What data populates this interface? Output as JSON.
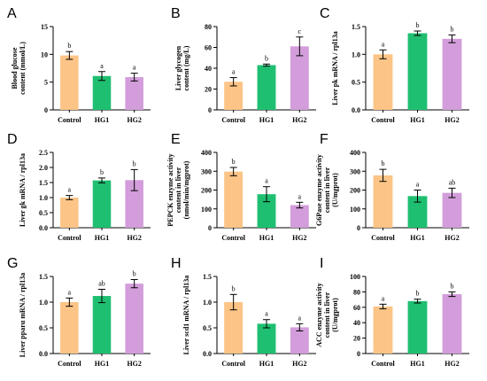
{
  "figure": {
    "colors": {
      "Control": "#FCC486",
      "HG1": "#1FBF71",
      "HG2": "#D39DDB"
    }
  },
  "chart_data": [
    {
      "id": "A",
      "type": "bar",
      "letter": "A",
      "categories": [
        "Control",
        "HG1",
        "HG2"
      ],
      "values": [
        9.8,
        6.1,
        5.9
      ],
      "errors": [
        0.7,
        0.8,
        0.7
      ],
      "sig": [
        "b",
        "a",
        "a"
      ],
      "ylabel_lines": [
        "Blood glucose",
        "content (mmol/L)"
      ],
      "ylim": [
        0,
        15
      ],
      "yticks": [
        "0",
        "5",
        "10",
        "15"
      ]
    },
    {
      "id": "B",
      "type": "bar",
      "letter": "B",
      "categories": [
        "Control",
        "HG1",
        "HG2"
      ],
      "values": [
        27,
        43,
        61
      ],
      "errors": [
        4,
        1,
        9
      ],
      "sig": [
        "a",
        "b",
        "c"
      ],
      "ylabel_lines": [
        "Liver glycogen",
        "content (mg/L)"
      ],
      "ylim": [
        0,
        80
      ],
      "yticks": [
        "0",
        "20",
        "40",
        "60",
        "80"
      ]
    },
    {
      "id": "C",
      "type": "bar",
      "letter": "C",
      "categories": [
        "Control",
        "HG1",
        "HG2"
      ],
      "values": [
        1.0,
        1.38,
        1.28
      ],
      "errors": [
        0.08,
        0.04,
        0.07
      ],
      "sig": [
        "a",
        "b",
        "b"
      ],
      "ylabel_lines": [
        "Liver pk mRNA / rpl13a"
      ],
      "ylim": [
        0,
        1.5
      ],
      "yticks": [
        "0.0",
        "0.5",
        "1.0",
        "1.5"
      ]
    },
    {
      "id": "D",
      "type": "bar",
      "letter": "D",
      "categories": [
        "Control",
        "HG1",
        "HG2"
      ],
      "values": [
        1.0,
        1.57,
        1.58
      ],
      "errors": [
        0.07,
        0.08,
        0.35
      ],
      "sig": [
        "a",
        "b",
        "b"
      ],
      "ylabel_lines": [
        "Liver gk mRNA / rpl13a"
      ],
      "ylim": [
        0,
        2.5
      ],
      "yticks": [
        "0.0",
        "0.5",
        "1.0",
        "1.5",
        "2.0",
        "2.5"
      ]
    },
    {
      "id": "E",
      "type": "bar",
      "letter": "E",
      "categories": [
        "Control",
        "HG1",
        "HG2"
      ],
      "values": [
        298,
        178,
        120
      ],
      "errors": [
        22,
        40,
        15
      ],
      "sig": [
        "b",
        "a",
        "a"
      ],
      "ylabel_lines": [
        "PEPCK enzyme activity",
        "content in liver",
        "(nmol/min/mgprot)"
      ],
      "ylim": [
        0,
        400
      ],
      "yticks": [
        "0",
        "100",
        "200",
        "300",
        "400"
      ]
    },
    {
      "id": "F",
      "type": "bar",
      "letter": "F",
      "categories": [
        "Control",
        "HG1",
        "HG2"
      ],
      "values": [
        278,
        168,
        185
      ],
      "errors": [
        32,
        32,
        25
      ],
      "sig": [
        "b",
        "a",
        "ab"
      ],
      "ylabel_lines": [
        "G6Pase enzyme activity",
        "content in liver",
        "(U/mgprot)"
      ],
      "ylim": [
        0,
        400
      ],
      "yticks": [
        "0",
        "100",
        "200",
        "300",
        "400"
      ]
    },
    {
      "id": "G",
      "type": "bar",
      "letter": "G",
      "categories": [
        "Control",
        "HG1",
        "HG2"
      ],
      "values": [
        1.0,
        1.12,
        1.36
      ],
      "errors": [
        0.08,
        0.13,
        0.08
      ],
      "sig": [
        "a",
        "ab",
        "b"
      ],
      "ylabel_lines": [
        "Liver pparα mRNA / rpl13a"
      ],
      "ylim": [
        0,
        1.5
      ],
      "yticks": [
        "0.0",
        "0.5",
        "1.0",
        "1.5"
      ]
    },
    {
      "id": "H",
      "type": "bar",
      "letter": "H",
      "categories": [
        "Control",
        "HG1",
        "HG2"
      ],
      "values": [
        1.0,
        0.58,
        0.51
      ],
      "errors": [
        0.15,
        0.08,
        0.07
      ],
      "sig": [
        "b",
        "a",
        "a"
      ],
      "ylabel_lines": [
        "Liver scd1 mRNA / rpl13a"
      ],
      "ylim": [
        0,
        1.5
      ],
      "yticks": [
        "0.0",
        "0.5",
        "1.0",
        "1.5"
      ]
    },
    {
      "id": "I",
      "type": "bar",
      "letter": "I",
      "categories": [
        "Control",
        "HG1",
        "HG2"
      ],
      "values": [
        61,
        68,
        77
      ],
      "errors": [
        3,
        2.5,
        3
      ],
      "sig": [
        "a",
        "b",
        "b"
      ],
      "ylabel_lines": [
        "ACC enzyme activity",
        "content in liver",
        "(U/mgprot)"
      ],
      "ylim": [
        0,
        100
      ],
      "yticks": [
        "0",
        "20",
        "40",
        "60",
        "80",
        "100"
      ]
    }
  ]
}
